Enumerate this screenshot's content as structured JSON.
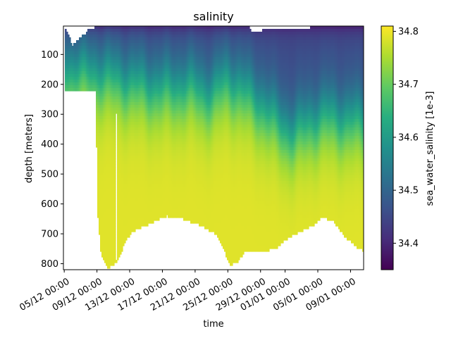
{
  "chart_data": {
    "type": "heatmap",
    "title": "salinity",
    "xlabel": "time",
    "ylabel": "depth [meters]",
    "colorbar_label": "sea_water_salinity [1e-3]",
    "colormap": "viridis",
    "x_tick_labels": [
      "05/12 00:00",
      "09/12 00:00",
      "13/12 00:00",
      "17/12 00:00",
      "21/12 00:00",
      "25/12 00:00",
      "29/12 00:00",
      "01/01 00:00",
      "05/01 00:00",
      "09/01 00:00"
    ],
    "x_tick_days": [
      0,
      4,
      8,
      12,
      16,
      20,
      24,
      27,
      31,
      35
    ],
    "xlim_days": [
      -0.1,
      36.6
    ],
    "y_ticks": [
      100,
      200,
      300,
      400,
      500,
      600,
      700,
      800
    ],
    "ylim": [
      820,
      5
    ],
    "y_inverted": true,
    "color_ticks": [
      34.4,
      34.5,
      34.6,
      34.7,
      34.8
    ],
    "color_range": [
      34.35,
      34.81
    ],
    "max_depth_profile": {
      "day": [
        0,
        3.9,
        4.0,
        4.5,
        5.3,
        6.2,
        7.0,
        7.5,
        8.5,
        10.5,
        12.5,
        14.5,
        16.5,
        18.5,
        19.6,
        20.3,
        21.2,
        22.0,
        23.0,
        24.5,
        26.0,
        27.5,
        29.0,
        30.5,
        31.5,
        32.8,
        34.0,
        35.5,
        36.4
      ],
      "depth": [
        225,
        220,
        610,
        770,
        815,
        800,
        760,
        720,
        690,
        665,
        640,
        650,
        670,
        700,
        760,
        805,
        795,
        760,
        755,
        760,
        745,
        710,
        690,
        670,
        645,
        655,
        700,
        740,
        755
      ]
    },
    "surface_gap_profile": {
      "day": [
        0,
        0.5,
        1.0,
        1.5,
        2.0,
        2.6,
        3.0,
        3.6,
        3.9,
        4.2,
        10,
        18,
        22.5,
        23,
        26,
        29,
        31,
        36.6
      ],
      "depth": [
        5,
        30,
        70,
        55,
        40,
        30,
        10,
        10,
        5,
        5,
        5,
        5,
        5,
        25,
        10,
        15,
        5,
        5
      ]
    },
    "gap_near_13_12": {
      "day_start": 6.3,
      "day_end": 6.5,
      "depth_top": 300,
      "depth_bottom": 790
    },
    "salinity_model": {
      "surface_value": 34.45,
      "deep_value": 34.79,
      "cline_day": [
        0,
        4,
        7,
        10,
        12,
        15,
        18,
        20,
        22,
        24,
        26,
        28,
        30,
        32,
        34,
        36.6
      ],
      "cline_depth": [
        150,
        160,
        180,
        200,
        210,
        200,
        230,
        180,
        220,
        260,
        320,
        360,
        320,
        300,
        310,
        320
      ]
    }
  }
}
